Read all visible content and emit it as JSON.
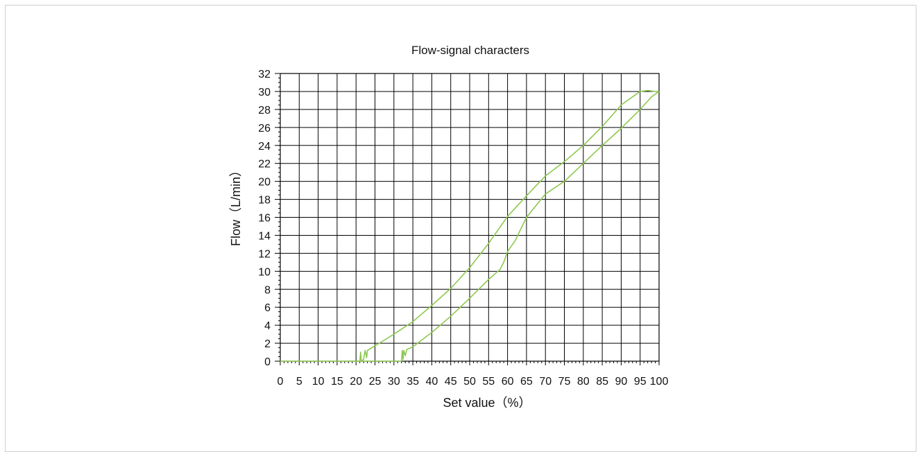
{
  "chart_data": {
    "type": "line",
    "title": "Flow-signal characters",
    "xlabel": "Set value（%）",
    "ylabel": "Flow（L/min）",
    "xlim": [
      0,
      100
    ],
    "ylim": [
      0,
      32
    ],
    "x_ticks": [
      0,
      5,
      10,
      15,
      20,
      25,
      30,
      35,
      40,
      45,
      50,
      55,
      60,
      65,
      70,
      75,
      80,
      85,
      90,
      95,
      100
    ],
    "y_ticks": [
      0,
      2,
      4,
      6,
      8,
      10,
      12,
      14,
      16,
      18,
      20,
      22,
      24,
      26,
      28,
      30,
      32
    ],
    "grid": true,
    "legend": "none",
    "line_color": "#8dc84f",
    "series": [
      {
        "x": [
          0,
          5,
          10,
          15,
          20,
          21,
          21.2,
          21.4,
          22,
          22.4,
          22.8,
          23,
          25,
          30,
          35,
          40,
          45,
          50,
          55,
          60,
          65,
          70,
          75,
          80,
          85,
          90,
          93,
          95,
          97,
          99,
          100
        ],
        "y": [
          0,
          0,
          0,
          0,
          0,
          0,
          1.0,
          0,
          0.2,
          1.2,
          0.4,
          1.2,
          1.7,
          3.0,
          4.4,
          6.2,
          8.1,
          10.4,
          13.1,
          16.1,
          18.4,
          20.6,
          22.2,
          24.0,
          26.1,
          28.5,
          29.4,
          30.0,
          30.1,
          30.0,
          29.9
        ]
      },
      {
        "x": [
          20,
          25,
          30,
          32,
          32.2,
          32.4,
          32.6,
          33,
          33.4,
          35,
          40,
          45,
          50,
          55,
          58,
          59,
          60,
          62,
          65,
          70,
          75,
          80,
          85,
          90,
          95,
          98,
          100
        ],
        "y": [
          0,
          0,
          0,
          0,
          1.2,
          0.2,
          1.2,
          0.6,
          1.3,
          1.6,
          3.2,
          5.0,
          7.0,
          9.1,
          10.2,
          11.0,
          12.2,
          13.4,
          16.0,
          18.6,
          20.0,
          22.0,
          24.0,
          25.9,
          28.0,
          29.4,
          30.0
        ]
      }
    ]
  }
}
